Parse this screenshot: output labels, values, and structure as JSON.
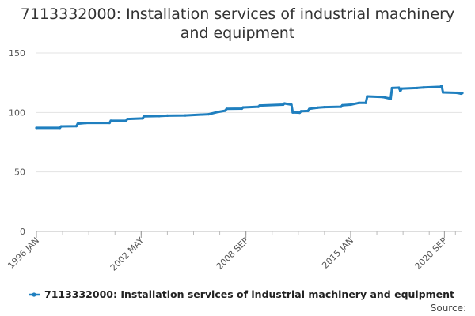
{
  "chart_data": {
    "type": "line",
    "title": "7113332000: Installation services of industrial machinery and equipment",
    "title_lines": [
      "7113332000: Installation services of industrial machinery",
      "and equipment"
    ],
    "xlabel": "",
    "ylabel": "",
    "ylim": [
      0,
      150
    ],
    "y_ticks": [
      0,
      50,
      100,
      150
    ],
    "x_ticks": [
      "1996 JAN",
      "2002 MAY",
      "2008 SEP",
      "2015 JAN",
      "2020 SEP"
    ],
    "grid": true,
    "legend_position": "bottom",
    "source_label": "Source:",
    "series": [
      {
        "name": "7113332000: Installation services of industrial machinery and equipment",
        "color": "#1f7fbf",
        "points": [
          [
            "1996-01",
            87.0
          ],
          [
            "1997-06",
            87.0
          ],
          [
            "1997-07",
            88.3
          ],
          [
            "1998-06",
            88.5
          ],
          [
            "1998-07",
            90.5
          ],
          [
            "1999-01",
            91.2
          ],
          [
            "2000-06",
            91.2
          ],
          [
            "2000-07",
            93.0
          ],
          [
            "2001-06",
            93.0
          ],
          [
            "2001-07",
            94.5
          ],
          [
            "2002-06",
            95.0
          ],
          [
            "2002-07",
            96.8
          ],
          [
            "2003-06",
            97.0
          ],
          [
            "2003-12",
            97.3
          ],
          [
            "2005-01",
            97.5
          ],
          [
            "2006-06",
            98.5
          ],
          [
            "2007-01",
            100.5
          ],
          [
            "2007-06",
            101.5
          ],
          [
            "2007-07",
            103.0
          ],
          [
            "2008-06",
            103.2
          ],
          [
            "2008-07",
            104.2
          ],
          [
            "2009-06",
            104.8
          ],
          [
            "2009-07",
            105.8
          ],
          [
            "2010-12",
            106.5
          ],
          [
            "2011-01",
            107.5
          ],
          [
            "2011-06",
            106.5
          ],
          [
            "2011-07",
            100.0
          ],
          [
            "2011-12",
            99.8
          ],
          [
            "2012-01",
            101.0
          ],
          [
            "2012-06",
            101.3
          ],
          [
            "2012-07",
            103.0
          ],
          [
            "2013-01",
            104.0
          ],
          [
            "2013-06",
            104.5
          ],
          [
            "2014-06",
            104.8
          ],
          [
            "2014-07",
            106.0
          ],
          [
            "2015-01",
            106.5
          ],
          [
            "2015-07",
            108.0
          ],
          [
            "2015-12",
            108.0
          ],
          [
            "2016-01",
            113.5
          ],
          [
            "2016-12",
            113.0
          ],
          [
            "2017-06",
            111.5
          ],
          [
            "2017-07",
            120.5
          ],
          [
            "2017-12",
            120.8
          ],
          [
            "2018-01",
            118.0
          ],
          [
            "2018-02",
            120.0
          ],
          [
            "2019-01",
            120.5
          ],
          [
            "2019-06",
            121.0
          ],
          [
            "2020-06",
            121.5
          ],
          [
            "2020-07",
            122.3
          ],
          [
            "2020-08",
            116.8
          ],
          [
            "2021-06",
            116.5
          ],
          [
            "2021-09",
            115.8
          ],
          [
            "2021-10",
            116.3
          ]
        ]
      }
    ]
  }
}
